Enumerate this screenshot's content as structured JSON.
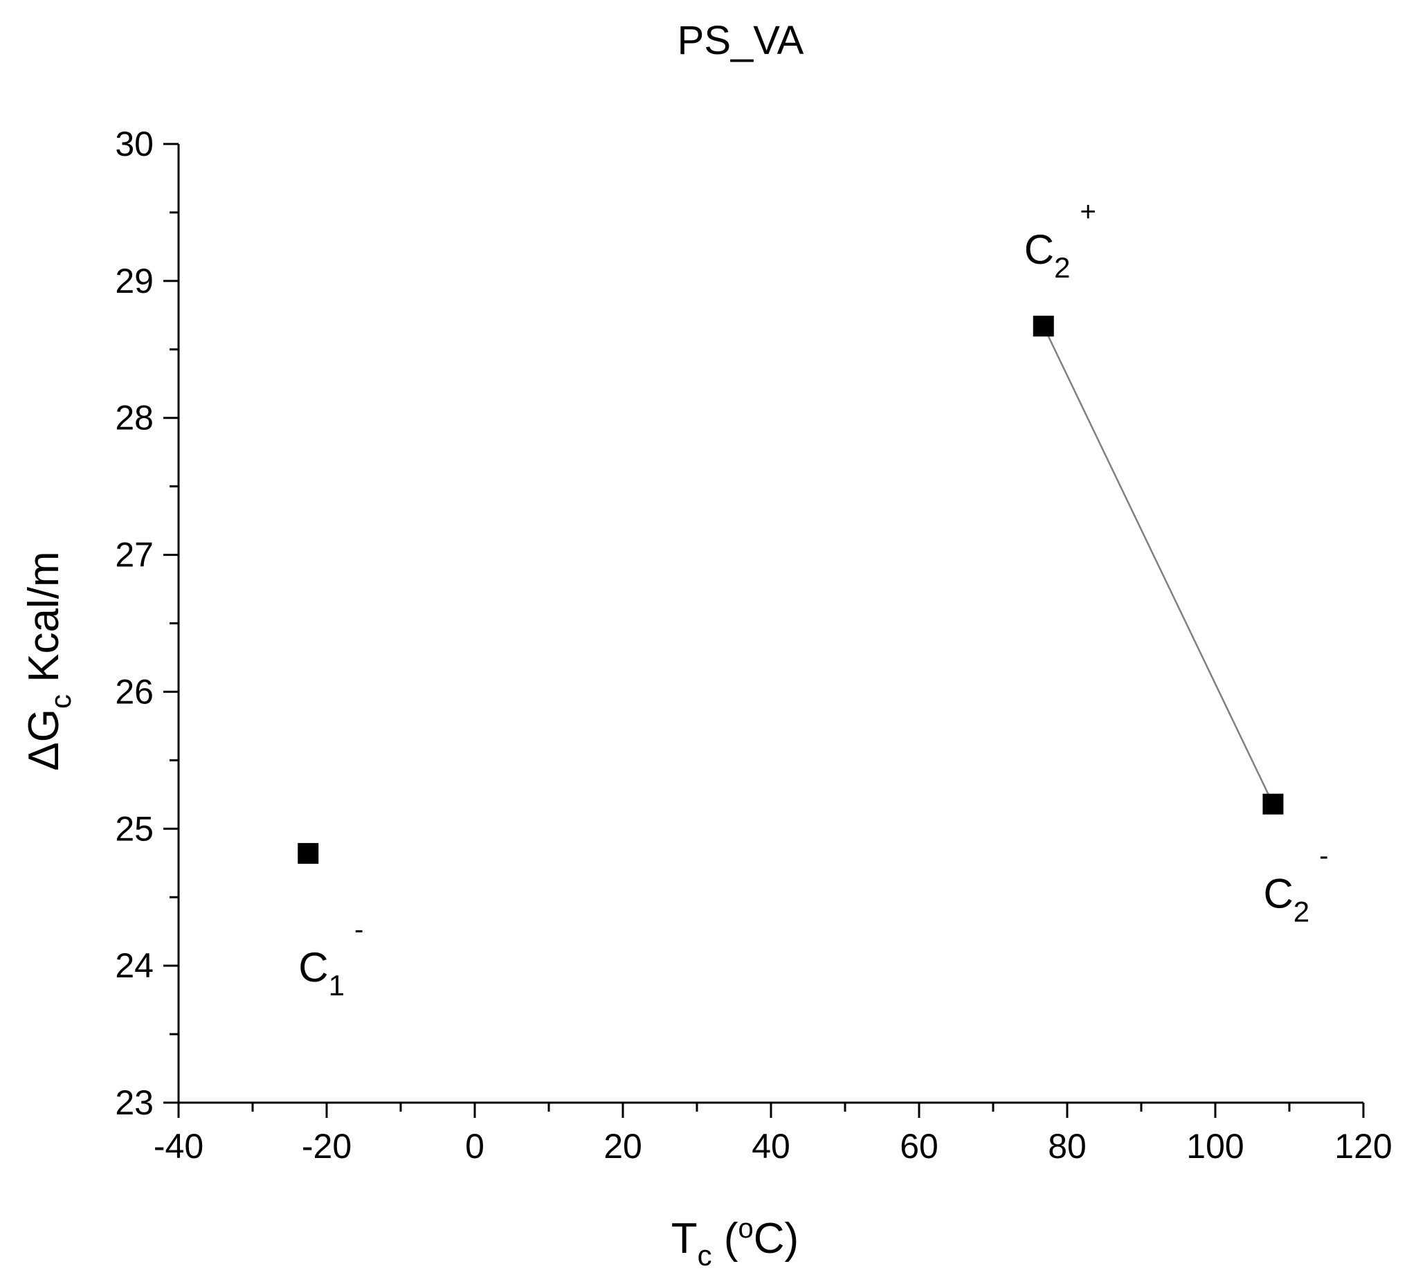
{
  "chart_data": {
    "type": "scatter",
    "title": "PS_VA",
    "xlabel": {
      "main": "T",
      "sub": "c",
      "rest": " (",
      "sup": "o",
      "end": "C)"
    },
    "ylabel": {
      "pre": "ΔG",
      "sub": "c",
      "rest": " Kcal/m"
    },
    "xlim": [
      -40,
      120
    ],
    "ylim": [
      23,
      30
    ],
    "xticks": [
      -40,
      -20,
      0,
      20,
      40,
      60,
      80,
      100,
      120
    ],
    "yticks": [
      23,
      24,
      25,
      26,
      27,
      28,
      29,
      30
    ],
    "grid": false,
    "marker": "square",
    "color": "#000000",
    "line_color": "#808080",
    "points": [
      {
        "x": -22.5,
        "y": 24.82,
        "label": {
          "base": "C",
          "sub": "1",
          "sup": "-"
        },
        "label_pos": "below-right"
      },
      {
        "x": 76.8,
        "y": 28.67,
        "label": {
          "base": "C",
          "sub": "2",
          "sup": "+"
        },
        "label_pos": "above"
      },
      {
        "x": 107.8,
        "y": 25.18,
        "label": {
          "base": "C",
          "sub": "2",
          "sup": "-"
        },
        "label_pos": "below"
      }
    ],
    "connected_segments": [
      [
        1,
        2
      ]
    ]
  }
}
